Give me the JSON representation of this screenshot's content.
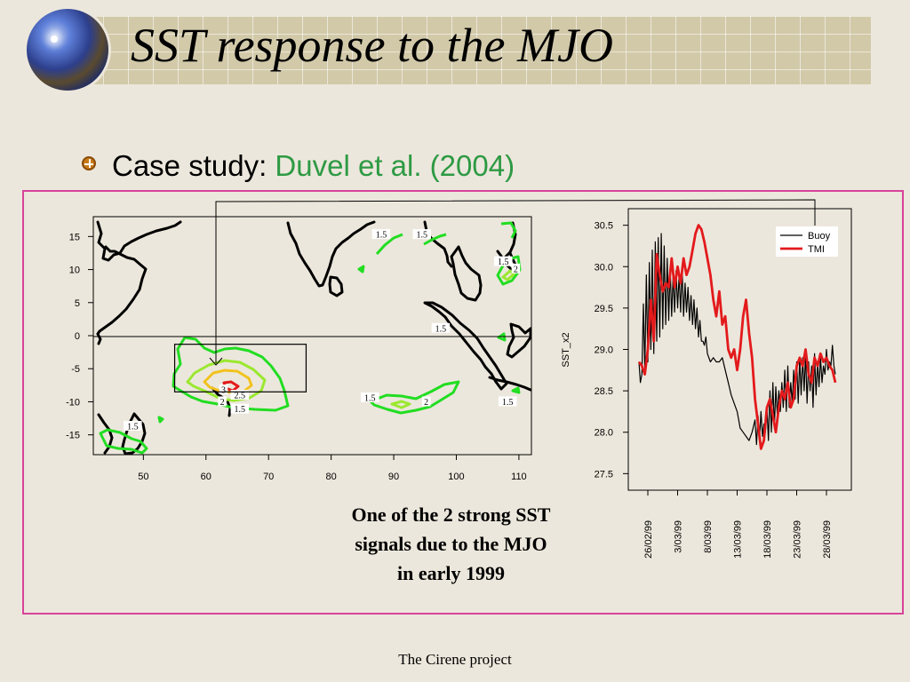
{
  "slide": {
    "title": "SST response to the MJO",
    "bullet_prefix": "Case study: ",
    "bullet_accent": "Duvel et al. (2004)",
    "caption_lines": [
      "One of the 2 strong SST",
      "signals due to the MJO",
      "in early 1999"
    ],
    "footer": "The Cirene project"
  },
  "colors": {
    "background": "#ece7dc",
    "title_bar": "#d2c9a9",
    "frame": "#d8439a",
    "accent_text": "#2e9a44",
    "buoy": "#000000",
    "tmi": "#e31a1c",
    "contour_1_5": "#22dd22",
    "contour_2": "#9be830",
    "contour_2_5": "#f2c21e",
    "contour_3": "#e31a1c",
    "coast": "#000000"
  },
  "icons": {
    "bullet": "globe-bullet-icon",
    "logo": "globe-icon"
  },
  "chart_data": [
    {
      "type": "contour-map",
      "x_ticks": [
        "50",
        "60",
        "70",
        "80",
        "90",
        "100",
        "110"
      ],
      "y_ticks": [
        "15",
        "10",
        "5",
        "0",
        "-5",
        "-10",
        "-15"
      ],
      "xlim": [
        42,
        112
      ],
      "ylim": [
        -18,
        18
      ],
      "contour_labels": [
        {
          "text": "1.5",
          "lon": 88,
          "lat": 15.3
        },
        {
          "text": "1.5",
          "lon": 94.5,
          "lat": 15.3
        },
        {
          "text": "1.5",
          "lon": 107.5,
          "lat": 11.2
        },
        {
          "text": "2",
          "lon": 109.5,
          "lat": 10.1
        },
        {
          "text": "1.5",
          "lon": 97.5,
          "lat": 1.1
        },
        {
          "text": "3",
          "lon": 62.8,
          "lat": -8.2
        },
        {
          "text": "2.5",
          "lon": 65.4,
          "lat": -9.0
        },
        {
          "text": "2",
          "lon": 62.6,
          "lat": -10.0
        },
        {
          "text": "1.5",
          "lon": 65.4,
          "lat": -11.1
        },
        {
          "text": "1.5",
          "lon": 86.2,
          "lat": -9.4
        },
        {
          "text": "2",
          "lon": 95.2,
          "lat": -10.0
        },
        {
          "text": "1.5",
          "lon": 108.2,
          "lat": -10.0
        },
        {
          "text": "1.5",
          "lon": 48.3,
          "lat": -13.7
        }
      ],
      "highlight_box": {
        "lon_range": [
          55,
          76
        ],
        "lat_range": [
          -8.5,
          -1.3
        ]
      }
    },
    {
      "type": "line",
      "ylabel": "SST_x2",
      "ylim": [
        27.3,
        30.7
      ],
      "y_ticks": [
        27.5,
        28.0,
        28.5,
        29.0,
        29.5,
        30.0,
        30.5
      ],
      "x_tick_labels": [
        "26/02/99",
        "3/03/99",
        "8/03/99",
        "13/03/99",
        "18/03/99",
        "23/03/99",
        "28/03/99"
      ],
      "x_start": "26/02/99",
      "x_end": "31/03/99",
      "series": [
        {
          "name": "Buoy",
          "color": "#000000",
          "x": [
            -1.5,
            -1.25,
            -1.0,
            -0.75,
            -0.5,
            -0.25,
            0.0,
            0.25,
            0.5,
            0.75,
            1.0,
            1.25,
            1.5,
            1.75,
            2.0,
            2.25,
            2.5,
            2.75,
            3.0,
            3.25,
            3.5,
            3.75,
            4.0,
            4.25,
            4.5,
            4.75,
            5.0,
            5.25,
            5.5,
            5.75,
            6.0,
            6.25,
            6.5,
            6.75,
            7.0,
            7.25,
            7.5,
            7.75,
            8.0,
            8.25,
            8.5,
            8.75,
            9.0,
            9.25,
            9.5,
            9.75,
            10.0,
            10.5,
            11.0,
            11.5,
            12.0,
            12.5,
            13.0,
            13.5,
            14.0,
            14.5,
            15.0,
            15.5,
            16.0,
            16.5,
            17.0,
            17.5,
            18.0,
            18.25,
            18.5,
            18.75,
            19.0,
            19.25,
            19.5,
            19.75,
            20.0,
            20.25,
            20.5,
            20.75,
            21.0,
            21.25,
            21.5,
            21.75,
            22.0,
            22.25,
            22.5,
            22.75,
            23.0,
            23.25,
            23.5,
            23.75,
            24.0,
            24.25,
            24.5,
            24.75,
            25.0,
            25.25,
            25.5,
            25.75,
            26.0,
            26.25,
            26.5,
            26.75,
            27.0,
            27.25,
            27.5,
            27.75,
            28.0,
            28.25,
            28.5,
            28.75,
            29.0,
            29.25,
            29.5,
            29.75,
            30.0,
            30.25,
            30.5,
            30.75,
            31.0,
            31.25,
            31.5
          ],
          "y": [
            28.85,
            28.6,
            28.7,
            29.55,
            28.75,
            29.9,
            28.85,
            30.05,
            29.0,
            30.2,
            28.95,
            30.3,
            29.1,
            30.35,
            29.15,
            30.4,
            29.25,
            30.25,
            29.3,
            30.1,
            29.35,
            30.0,
            29.4,
            29.9,
            29.45,
            29.95,
            29.5,
            29.9,
            29.45,
            30.0,
            29.4,
            29.8,
            29.45,
            29.75,
            29.35,
            29.65,
            29.3,
            29.6,
            29.25,
            29.5,
            29.15,
            29.35,
            29.1,
            29.1,
            29.05,
            29.15,
            28.95,
            28.85,
            28.9,
            28.85,
            28.85,
            28.9,
            28.75,
            28.6,
            28.45,
            28.35,
            28.25,
            28.05,
            28.0,
            27.95,
            27.9,
            28.0,
            28.15,
            27.85,
            28.2,
            27.9,
            28.25,
            27.95,
            28.1,
            28.0,
            28.3,
            27.9,
            28.5,
            28.0,
            28.6,
            28.05,
            28.55,
            28.2,
            28.5,
            28.25,
            28.6,
            28.3,
            28.75,
            28.25,
            28.8,
            28.3,
            28.6,
            28.35,
            28.75,
            28.4,
            28.85,
            28.35,
            28.9,
            28.45,
            28.9,
            28.5,
            28.95,
            28.35,
            28.85,
            28.5,
            28.8,
            28.3,
            28.95,
            28.45,
            28.85,
            28.55,
            28.9,
            28.6,
            28.8,
            28.7,
            29.0,
            28.75,
            28.85,
            28.8,
            29.05,
            28.8,
            28.7
          ]
        },
        {
          "name": "TMI",
          "color": "#e31a1c",
          "x": [
            -1.5,
            -1.0,
            -0.5,
            0.0,
            0.5,
            1.0,
            1.5,
            2.0,
            2.5,
            3.0,
            3.5,
            4.0,
            4.5,
            5.0,
            5.5,
            6.0,
            6.5,
            7.0,
            7.5,
            8.0,
            8.5,
            9.0,
            9.5,
            10.0,
            10.5,
            11.0,
            11.5,
            12.0,
            12.5,
            13.0,
            13.5,
            14.0,
            14.5,
            15.0,
            15.5,
            16.0,
            16.5,
            17.0,
            17.5,
            18.0,
            18.5,
            19.0,
            19.5,
            20.0,
            20.5,
            21.0,
            21.5,
            22.0,
            22.5,
            23.0,
            23.5,
            24.0,
            24.5,
            25.0,
            25.5,
            26.0,
            26.5,
            27.0,
            27.5,
            28.0,
            28.5,
            29.0,
            29.5,
            30.0,
            30.5,
            31.0,
            31.5
          ],
          "y": [
            28.85,
            28.8,
            28.7,
            29.0,
            29.6,
            29.1,
            30.15,
            29.9,
            29.7,
            29.8,
            29.75,
            30.1,
            29.75,
            30.0,
            29.8,
            30.1,
            29.9,
            30.0,
            30.2,
            30.4,
            30.5,
            30.45,
            30.3,
            30.1,
            29.9,
            29.6,
            29.4,
            29.7,
            29.3,
            29.4,
            29.0,
            28.9,
            29.0,
            28.75,
            29.0,
            29.4,
            29.6,
            29.2,
            28.9,
            28.4,
            28.1,
            27.8,
            27.9,
            28.3,
            28.4,
            28.2,
            28.0,
            28.3,
            28.5,
            28.4,
            28.6,
            28.3,
            28.4,
            28.8,
            28.9,
            28.8,
            29.0,
            28.7,
            28.6,
            28.9,
            28.8,
            28.95,
            28.85,
            28.9,
            28.8,
            28.75,
            28.6
          ]
        }
      ],
      "legend": "top-right"
    }
  ]
}
